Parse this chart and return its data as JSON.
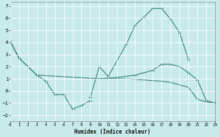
{
  "xlabel": "Humidex (Indice chaleur)",
  "bg_color": "#c8eaea",
  "grid_color": "#b8dada",
  "line_color": "#2e7d72",
  "xlim": [
    0,
    23
  ],
  "ylim": [
    -2.5,
    7.3
  ],
  "yticks": [
    -2,
    -1,
    0,
    1,
    2,
    3,
    4,
    5,
    6,
    7
  ],
  "xticks": [
    0,
    1,
    2,
    3,
    4,
    5,
    6,
    7,
    8,
    9,
    10,
    11,
    12,
    13,
    14,
    15,
    16,
    17,
    18,
    19,
    20,
    21,
    22,
    23
  ],
  "line1_x": [
    0,
    1,
    3,
    4,
    5,
    6,
    7,
    8,
    9
  ],
  "line1_y": [
    4.1,
    2.7,
    1.3,
    0.8,
    -0.3,
    -0.3,
    -1.5,
    -1.2,
    -0.8
  ],
  "line2_x": [
    9,
    10,
    11,
    13,
    14,
    15,
    16,
    17,
    18,
    19,
    20
  ],
  "line2_y": [
    -0.5,
    2.0,
    1.2,
    3.8,
    5.4,
    6.1,
    6.8,
    6.8,
    5.9,
    4.8,
    2.6
  ],
  "line3_x": [
    10,
    11,
    12,
    13,
    14,
    15,
    16,
    17,
    18,
    19,
    20,
    21,
    22,
    23
  ],
  "line3_y": [
    1.0,
    1.05,
    1.1,
    1.2,
    1.3,
    1.5,
    1.7,
    2.2,
    2.2,
    2.0,
    1.5,
    0.9,
    -0.8,
    -1.0
  ],
  "line4_x": [
    0,
    1,
    3,
    10,
    11,
    12,
    13,
    14,
    15,
    16,
    17,
    18,
    19,
    20,
    21,
    22,
    23
  ],
  "line4_y": [
    4.1,
    2.7,
    1.3,
    1.0,
    1.0,
    1.0,
    1.0,
    0.95,
    0.9,
    0.85,
    0.8,
    0.7,
    0.5,
    0.3,
    -0.7,
    -0.9,
    -1.0
  ]
}
